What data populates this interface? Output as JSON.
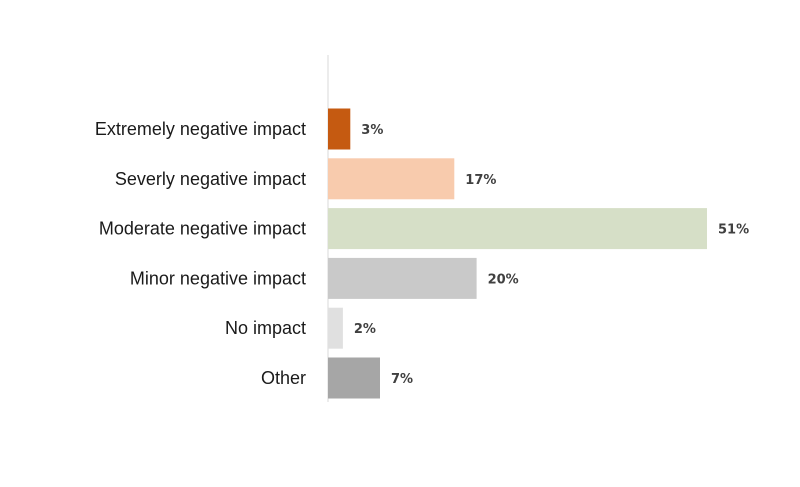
{
  "chart_data": {
    "type": "bar",
    "orientation": "horizontal",
    "title": "",
    "xlabel": "",
    "ylabel": "",
    "categories": [
      "Extremely negative impact",
      "Severly negative impact",
      "Moderate negative impact",
      "Minor negative impact",
      "No impact",
      "Other"
    ],
    "values": [
      3,
      17,
      51,
      20,
      2,
      7
    ],
    "value_labels": [
      "3%",
      "17%",
      "51%",
      "20%",
      "2%",
      "7%"
    ],
    "value_unit": "%",
    "xlim": [
      0,
      51
    ],
    "grid": false,
    "legend": "none",
    "colors": [
      "#c55a11",
      "#f8cbad",
      "#d6dfc7",
      "#c9c9c9",
      "#e0e0e0",
      "#a6a6a6"
    ],
    "axis_color": "#d9d9d9"
  }
}
